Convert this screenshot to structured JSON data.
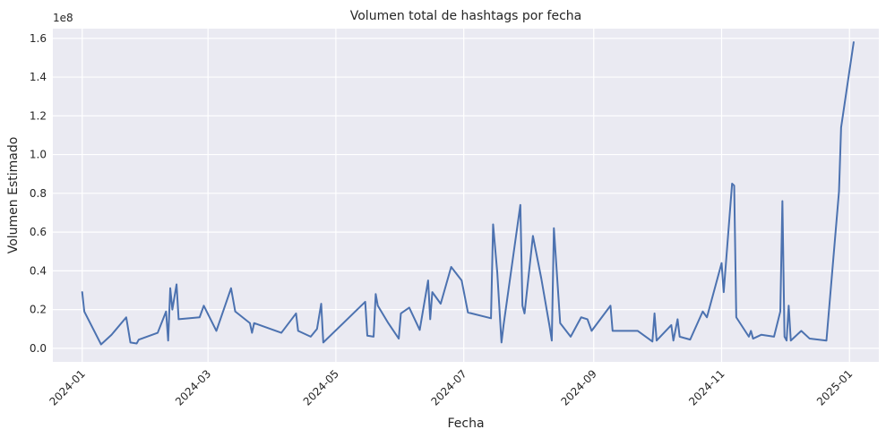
{
  "chart_data": {
    "type": "line",
    "title": "Volumen total de hashtags por fecha",
    "xlabel": "Fecha",
    "ylabel": "Volumen Estimado",
    "y_offset_label": "1e8",
    "y_scale": 100000000,
    "xlim": [
      "2023-12-18",
      "2025-01-15"
    ],
    "ylim": [
      -0.07,
      1.65
    ],
    "grid": true,
    "x_ticks": [
      "2024-01-01",
      "2024-03-01",
      "2024-05-01",
      "2024-07-01",
      "2024-09-01",
      "2024-11-01",
      "2025-01-01"
    ],
    "x_tick_labels": [
      "2024-01",
      "2024-03",
      "2024-05",
      "2024-07",
      "2024-09",
      "2024-11",
      "2025-01"
    ],
    "y_ticks": [
      0,
      0.2,
      0.4,
      0.6,
      0.8,
      1.0,
      1.2,
      1.4,
      1.6
    ],
    "y_tick_labels": [
      "0.0",
      "0.2",
      "0.4",
      "0.6",
      "0.8",
      "1.0",
      "1.2",
      "1.4",
      "1.6"
    ],
    "colors": {
      "line": "#4c72b0",
      "plot_bg": "#eaeaf2",
      "page_bg": "#ffffff"
    },
    "series": [
      {
        "x": [
          "2024-01-01",
          "2024-01-02",
          "2024-01-10",
          "2024-01-15",
          "2024-01-22",
          "2024-01-24",
          "2024-01-27",
          "2024-01-28",
          "2024-02-06",
          "2024-02-10",
          "2024-02-11",
          "2024-02-12",
          "2024-02-13",
          "2024-02-15",
          "2024-02-16",
          "2024-02-26",
          "2024-02-28",
          "2024-03-05",
          "2024-03-12",
          "2024-03-14",
          "2024-03-21",
          "2024-03-22",
          "2024-03-23",
          "2024-04-05",
          "2024-04-12",
          "2024-04-13",
          "2024-04-19",
          "2024-04-22",
          "2024-04-24",
          "2024-04-25",
          "2024-05-15",
          "2024-05-16",
          "2024-05-19",
          "2024-05-20",
          "2024-05-21",
          "2024-05-26",
          "2024-05-31",
          "2024-06-01",
          "2024-06-05",
          "2024-06-10",
          "2024-06-14",
          "2024-06-15",
          "2024-06-16",
          "2024-06-20",
          "2024-06-25",
          "2024-06-30",
          "2024-07-03",
          "2024-07-14",
          "2024-07-15",
          "2024-07-17",
          "2024-07-19",
          "2024-07-20",
          "2024-07-28",
          "2024-07-29",
          "2024-07-30",
          "2024-08-03",
          "2024-08-07",
          "2024-08-11",
          "2024-08-12",
          "2024-08-13",
          "2024-08-16",
          "2024-08-21",
          "2024-08-26",
          "2024-08-29",
          "2024-08-31",
          "2024-09-09",
          "2024-09-10",
          "2024-09-12",
          "2024-09-22",
          "2024-09-29",
          "2024-09-30",
          "2024-10-01",
          "2024-10-08",
          "2024-10-09",
          "2024-10-11",
          "2024-10-12",
          "2024-10-17",
          "2024-10-23",
          "2024-10-25",
          "2024-11-01",
          "2024-11-02",
          "2024-11-06",
          "2024-11-07",
          "2024-11-08",
          "2024-11-14",
          "2024-11-15",
          "2024-11-16",
          "2024-11-20",
          "2024-11-26",
          "2024-11-29",
          "2024-11-30",
          "2024-12-01",
          "2024-12-02",
          "2024-12-03",
          "2024-12-04",
          "2024-12-09",
          "2024-12-13",
          "2024-12-21",
          "2024-12-27",
          "2024-12-28",
          "2025-01-03"
        ],
        "y": [
          0.29,
          0.19,
          0.02,
          0.07,
          0.16,
          0.03,
          0.025,
          0.045,
          0.08,
          0.19,
          0.04,
          0.31,
          0.2,
          0.33,
          0.15,
          0.16,
          0.22,
          0.09,
          0.31,
          0.19,
          0.13,
          0.08,
          0.13,
          0.08,
          0.18,
          0.09,
          0.06,
          0.1,
          0.23,
          0.03,
          0.24,
          0.065,
          0.06,
          0.28,
          0.22,
          0.13,
          0.05,
          0.18,
          0.21,
          0.095,
          0.35,
          0.15,
          0.29,
          0.23,
          0.42,
          0.35,
          0.185,
          0.155,
          0.64,
          0.39,
          0.03,
          0.12,
          0.74,
          0.22,
          0.18,
          0.58,
          0.36,
          0.11,
          0.04,
          0.62,
          0.13,
          0.06,
          0.16,
          0.15,
          0.09,
          0.22,
          0.09,
          0.09,
          0.09,
          0.035,
          0.18,
          0.04,
          0.12,
          0.04,
          0.15,
          0.06,
          0.045,
          0.19,
          0.16,
          0.44,
          0.29,
          0.85,
          0.84,
          0.16,
          0.06,
          0.09,
          0.05,
          0.07,
          0.06,
          0.19,
          0.76,
          0.06,
          0.04,
          0.22,
          0.04,
          0.09,
          0.05,
          0.04,
          0.81,
          1.14,
          1.58
        ]
      }
    ]
  }
}
